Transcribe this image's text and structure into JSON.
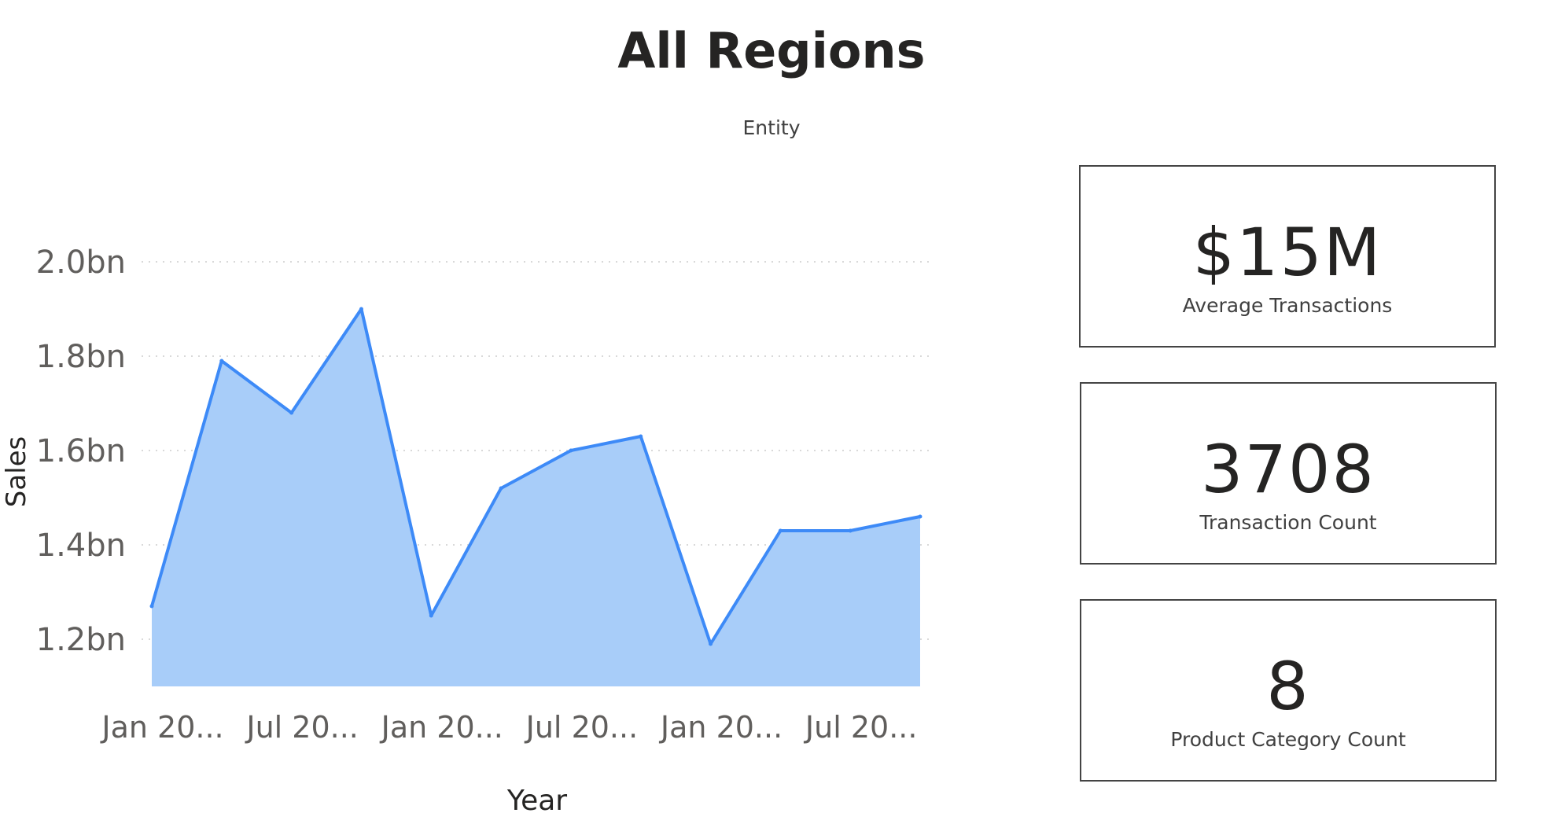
{
  "header": {
    "title": "All Regions",
    "entity_label": "Entity"
  },
  "cards": [
    {
      "value": "$15M",
      "label": "Average Transactions"
    },
    {
      "value": "3708",
      "label": "Transaction Count"
    },
    {
      "value": "8",
      "label": "Product Category Count"
    }
  ],
  "colors": {
    "line": "#3d8af7",
    "area": "#a8cdf9",
    "gridline": "#d9d9d9",
    "axis_text": "#605e5c"
  },
  "chart_data": {
    "type": "area",
    "xlabel": "Year",
    "ylabel": "Sales",
    "ylim": [
      1.1,
      2.0
    ],
    "yticks": [
      {
        "value": 2.0,
        "label": "2.0bn"
      },
      {
        "value": 1.8,
        "label": "1.8bn"
      },
      {
        "value": 1.6,
        "label": "1.6bn"
      },
      {
        "value": 1.4,
        "label": "1.4bn"
      },
      {
        "value": 1.2,
        "label": "1.2bn"
      }
    ],
    "xticks": [
      {
        "index": 0,
        "label": "Jan 20..."
      },
      {
        "index": 2,
        "label": "Jul 20..."
      },
      {
        "index": 4,
        "label": "Jan 20..."
      },
      {
        "index": 6,
        "label": "Jul 20..."
      },
      {
        "index": 8,
        "label": "Jan 20..."
      },
      {
        "index": 10,
        "label": "Jul 20..."
      }
    ],
    "grid": true,
    "series": [
      {
        "values": [
          1.27,
          1.79,
          1.68,
          1.9,
          1.25,
          1.52,
          1.6,
          1.63,
          1.19,
          1.43,
          1.43,
          1.46
        ]
      }
    ]
  }
}
